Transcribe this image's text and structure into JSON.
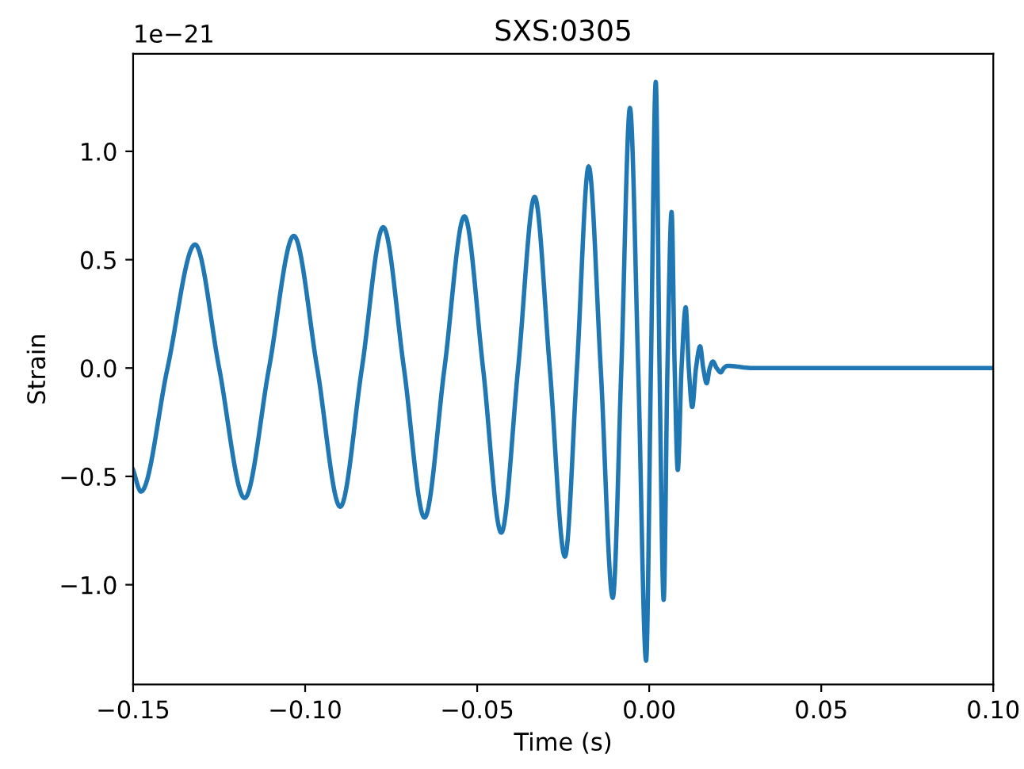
{
  "chart_data": {
    "type": "line",
    "title": "SXS:0305",
    "xlabel": "Time (s)",
    "ylabel": "Strain",
    "annotations": [
      "1e−21"
    ],
    "x": [
      -0.15,
      -0.1477,
      -0.14,
      -0.132,
      -0.125,
      -0.1176,
      -0.1105,
      -0.1033,
      -0.0965,
      -0.0898,
      -0.0835,
      -0.0773,
      -0.0713,
      -0.0653,
      -0.0595,
      -0.0537,
      -0.0483,
      -0.043,
      -0.0381,
      -0.0333,
      -0.0289,
      -0.0245,
      -0.021,
      -0.0176,
      -0.0141,
      -0.0106,
      -0.0081,
      -0.0056,
      -0.0032,
      -0.0009,
      0.0005,
      0.0019,
      0.003,
      0.0042,
      0.0053,
      0.0065,
      0.0074,
      0.0083,
      0.0094,
      0.0106,
      0.0115,
      0.0125,
      0.0136,
      0.0148,
      0.0157,
      0.0167,
      0.0176,
      0.0185,
      0.0196,
      0.0208,
      0.0217,
      0.0227,
      0.03,
      0.1
    ],
    "series": [
      {
        "color": "#1f77b4",
        "values": [
          -0.47,
          -0.57,
          0.0,
          0.57,
          0.0,
          -0.6,
          0.0,
          0.61,
          0.0,
          -0.64,
          0.0,
          0.65,
          0.0,
          -0.69,
          0.0,
          0.7,
          0.0,
          -0.76,
          0.0,
          0.79,
          0.0,
          -0.87,
          0.0,
          0.93,
          0.0,
          -1.06,
          0.0,
          1.2,
          0.0,
          -1.35,
          0.0,
          1.32,
          0.0,
          -1.07,
          0.0,
          0.72,
          0.0,
          -0.47,
          0.0,
          0.28,
          0.0,
          -0.18,
          0.0,
          0.1,
          0.0,
          -0.07,
          0.0,
          0.03,
          0.0,
          -0.02,
          0.0,
          0.01,
          0.0,
          0.0
        ]
      }
    ],
    "xlim": [
      -0.15,
      0.1
    ],
    "xticks": [
      {
        "value": -0.15,
        "label": "−0.15"
      },
      {
        "value": -0.1,
        "label": "−0.10"
      },
      {
        "value": -0.05,
        "label": "−0.05"
      },
      {
        "value": 0.0,
        "label": "0.00"
      },
      {
        "value": 0.05,
        "label": "0.05"
      },
      {
        "value": 0.1,
        "label": "0.10"
      }
    ],
    "ylim": [
      -1.46,
      1.45
    ],
    "yticks": [
      {
        "value": -1.0,
        "label": "−1.0"
      },
      {
        "value": -0.5,
        "label": "−0.5"
      },
      {
        "value": 0.0,
        "label": "0.0"
      },
      {
        "value": 0.5,
        "label": "0.5"
      },
      {
        "value": 1.0,
        "label": "1.0"
      }
    ],
    "grid": false,
    "legend": false
  }
}
